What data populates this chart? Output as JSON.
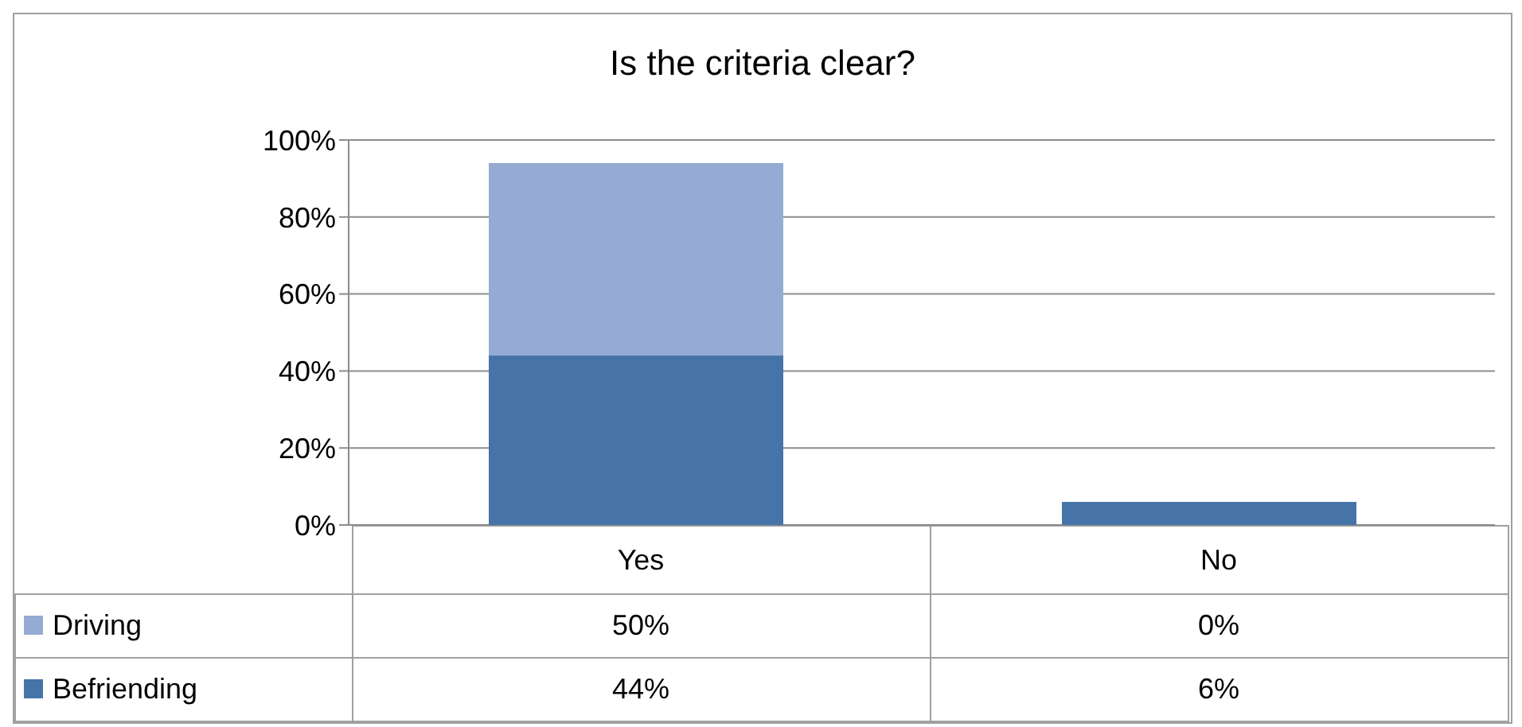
{
  "chart_data": {
    "type": "bar",
    "title": "Is the criteria clear?",
    "categories": [
      "Yes",
      "No"
    ],
    "stacked": true,
    "ylim": [
      0,
      100
    ],
    "yticks": [
      {
        "value": 0,
        "label": "0%"
      },
      {
        "value": 20,
        "label": "20%"
      },
      {
        "value": 40,
        "label": "40%"
      },
      {
        "value": 60,
        "label": "60%"
      },
      {
        "value": 80,
        "label": "80%"
      },
      {
        "value": 100,
        "label": "100%"
      }
    ],
    "grid": "y",
    "legend": "bottom left",
    "series": [
      {
        "name": "Befriending",
        "color": "#4674a8",
        "values": [
          44,
          6
        ],
        "value_labels": [
          "44%",
          "6%"
        ]
      },
      {
        "name": "Driving",
        "color": "#95abd3",
        "values": [
          50,
          0
        ],
        "value_labels": [
          "50%",
          "0%"
        ]
      }
    ]
  }
}
